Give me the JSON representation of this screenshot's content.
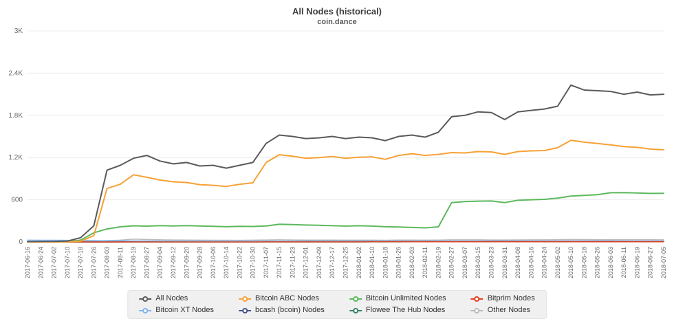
{
  "title": "All Nodes (historical)",
  "subtitle": "coin.dance",
  "chart_data": {
    "type": "line",
    "title": "All Nodes (historical)",
    "subtitle": "coin.dance",
    "ylim": [
      0,
      3000
    ],
    "yticks": [
      [
        0,
        "0"
      ],
      [
        600,
        "600"
      ],
      [
        1200,
        "1.2K"
      ],
      [
        1800,
        "1.8K"
      ],
      [
        2400,
        "2.4K"
      ],
      [
        3000,
        "3K"
      ]
    ],
    "grid": true,
    "legend_position": "bottom",
    "x": [
      "2017-06-16",
      "2017-06-24",
      "2017-07-02",
      "2017-07-10",
      "2017-07-18",
      "2017-07-26",
      "2017-08-03",
      "2017-08-11",
      "2017-08-19",
      "2017-08-27",
      "2017-09-04",
      "2017-09-12",
      "2017-09-20",
      "2017-09-28",
      "2017-10-06",
      "2017-10-14",
      "2017-10-22",
      "2017-10-30",
      "2017-11-07",
      "2017-11-15",
      "2017-11-23",
      "2017-12-01",
      "2017-12-09",
      "2017-12-17",
      "2017-12-25",
      "2018-01-02",
      "2018-01-10",
      "2018-01-18",
      "2018-01-26",
      "2018-02-03",
      "2018-02-11",
      "2018-02-19",
      "2018-02-27",
      "2018-03-07",
      "2018-03-15",
      "2018-03-23",
      "2018-03-31",
      "2018-04-08",
      "2018-04-16",
      "2018-04-24",
      "2018-05-02",
      "2018-05-10",
      "2018-05-18",
      "2018-05-26",
      "2018-06-03",
      "2018-06-11",
      "2018-06-19",
      "2018-06-27",
      "2018-07-05"
    ],
    "series": [
      {
        "name": "All Nodes",
        "color": "#5a5a5a",
        "values": [
          5,
          6,
          8,
          12,
          60,
          230,
          1020,
          1090,
          1190,
          1230,
          1150,
          1110,
          1130,
          1080,
          1090,
          1050,
          1090,
          1130,
          1400,
          1520,
          1500,
          1470,
          1480,
          1500,
          1470,
          1490,
          1480,
          1440,
          1500,
          1520,
          1490,
          1560,
          1780,
          1800,
          1850,
          1840,
          1740,
          1850,
          1870,
          1890,
          1930,
          2230,
          2160,
          2150,
          2140,
          2100,
          2130,
          2090,
          2100
        ]
      },
      {
        "name": "Bitcoin ABC Nodes",
        "color": "#f7a135",
        "values": [
          0,
          0,
          0,
          2,
          10,
          90,
          760,
          820,
          955,
          920,
          880,
          855,
          845,
          815,
          805,
          790,
          820,
          840,
          1130,
          1240,
          1220,
          1190,
          1200,
          1215,
          1190,
          1205,
          1210,
          1175,
          1230,
          1255,
          1230,
          1245,
          1270,
          1265,
          1285,
          1280,
          1245,
          1285,
          1295,
          1300,
          1340,
          1445,
          1420,
          1400,
          1380,
          1355,
          1345,
          1320,
          1310
        ]
      },
      {
        "name": "Bitcoin Unlimited Nodes",
        "color": "#5cb85c",
        "values": [
          0,
          0,
          1,
          3,
          25,
          130,
          185,
          215,
          230,
          225,
          232,
          228,
          233,
          228,
          222,
          216,
          222,
          220,
          228,
          252,
          246,
          240,
          236,
          231,
          226,
          231,
          226,
          216,
          212,
          206,
          200,
          215,
          560,
          575,
          580,
          582,
          560,
          592,
          600,
          606,
          622,
          652,
          662,
          672,
          700,
          702,
          696,
          690,
          692
        ]
      },
      {
        "name": "Bitprim Nodes",
        "color": "#e2431e",
        "values": [
          0,
          0,
          0,
          0,
          0,
          0,
          0,
          0,
          0,
          0,
          0,
          0,
          0,
          0,
          0,
          0,
          0,
          0,
          1,
          1,
          1,
          1,
          1,
          1,
          1,
          1,
          2,
          2,
          2,
          2,
          2,
          2,
          2,
          2,
          2,
          2,
          2,
          2,
          2,
          2,
          2,
          2,
          3,
          3,
          3,
          3,
          3,
          3,
          3
        ]
      },
      {
        "name": "Bitcoin XT Nodes",
        "color": "#7cb5ec",
        "values": [
          25,
          24,
          24,
          23,
          22,
          20,
          18,
          16,
          15,
          15,
          14,
          14,
          13,
          13,
          12,
          12,
          12,
          12,
          11,
          11,
          11,
          10,
          10,
          10,
          10,
          10,
          10,
          10,
          9,
          9,
          9,
          9,
          9,
          9,
          8,
          8,
          8,
          8,
          8,
          8,
          8,
          8,
          8,
          7,
          7,
          7,
          7,
          7,
          7
        ]
      },
      {
        "name": "bcash (bcoin) Nodes",
        "color": "#44518f",
        "values": [
          0,
          0,
          0,
          0,
          0,
          0,
          0,
          2,
          3,
          4,
          6,
          8,
          9,
          10,
          10,
          10,
          10,
          10,
          12,
          12,
          12,
          12,
          12,
          12,
          12,
          12,
          12,
          11,
          11,
          11,
          11,
          11,
          12,
          12,
          12,
          12,
          12,
          12,
          12,
          12,
          13,
          14,
          14,
          14,
          14,
          13,
          13,
          13,
          13
        ]
      },
      {
        "name": "Flowee The Hub Nodes",
        "color": "#33806b",
        "values": [
          0,
          0,
          0,
          0,
          0,
          0,
          0,
          0,
          0,
          0,
          0,
          0,
          0,
          0,
          0,
          0,
          0,
          0,
          0,
          0,
          0,
          0,
          0,
          0,
          0,
          0,
          1,
          1,
          1,
          2,
          2,
          2,
          2,
          2,
          3,
          3,
          3,
          3,
          3,
          3,
          4,
          4,
          4,
          4,
          4,
          4,
          4,
          4,
          4
        ]
      },
      {
        "name": "Other Nodes",
        "color": "#b8bcbf",
        "values": [
          3,
          3,
          4,
          4,
          5,
          10,
          20,
          25,
          40,
          35,
          30,
          28,
          26,
          25,
          24,
          24,
          23,
          25,
          28,
          30,
          28,
          27,
          26,
          26,
          25,
          25,
          25,
          24,
          26,
          26,
          25,
          26,
          30,
          30,
          30,
          28,
          28,
          29,
          30,
          30,
          32,
          35,
          34,
          33,
          33,
          32,
          32,
          31,
          30
        ]
      }
    ]
  }
}
